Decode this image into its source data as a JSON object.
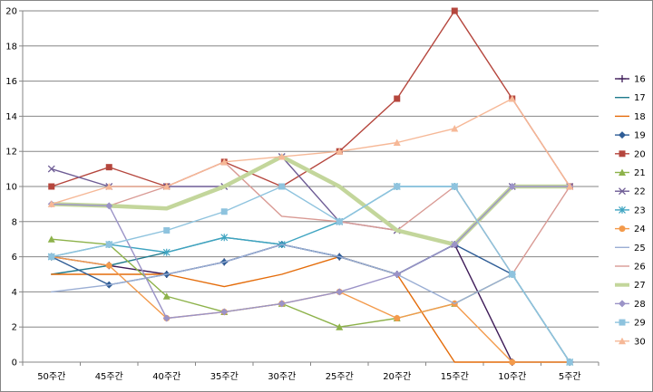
{
  "chart_data": {
    "type": "line",
    "categories": [
      "50주간",
      "45주간",
      "40주간",
      "35주간",
      "30주간",
      "25주간",
      "20주간",
      "15주간",
      "10주간",
      "5주간"
    ],
    "ylim": [
      0,
      20
    ],
    "yticks": [
      0,
      2,
      4,
      6,
      8,
      10,
      12,
      14,
      16,
      18,
      20
    ],
    "grid": true,
    "legend_position": "right",
    "series": [
      {
        "name": "16",
        "color": "#3d1a57",
        "marker": "plus",
        "values": [
          6,
          5.5,
          5,
          5.7,
          6.7,
          6,
          5,
          6.7,
          0,
          0
        ]
      },
      {
        "name": "17",
        "color": "#1f7a8c",
        "marker": "none",
        "values": [
          5,
          5.5,
          6.25,
          7.1,
          6.7,
          6,
          5,
          6.7,
          10,
          10
        ]
      },
      {
        "name": "18",
        "color": "#e46c0a",
        "marker": "none",
        "values": [
          5,
          5,
          5,
          4.3,
          5,
          6,
          5,
          0,
          0,
          0
        ]
      },
      {
        "name": "19",
        "color": "#2f5d96",
        "marker": "diamond",
        "values": [
          6,
          4.4,
          5,
          5.7,
          6.7,
          6,
          5,
          6.7,
          5,
          0
        ]
      },
      {
        "name": "20",
        "color": "#b5463d",
        "marker": "square",
        "values": [
          10,
          11.1,
          10,
          11.4,
          10,
          12,
          15,
          20,
          15,
          10
        ]
      },
      {
        "name": "21",
        "color": "#8db24a",
        "marker": "triangle",
        "values": [
          7,
          6.7,
          3.75,
          2.86,
          3.33,
          2,
          2.5,
          3.33,
          5,
          0
        ]
      },
      {
        "name": "22",
        "color": "#6e5c95",
        "marker": "x",
        "values": [
          11,
          10,
          10,
          10,
          11.7,
          8,
          7.5,
          6.7,
          10,
          10
        ]
      },
      {
        "name": "23",
        "color": "#3ea4c1",
        "marker": "star",
        "values": [
          6,
          6.7,
          6.25,
          7.1,
          6.7,
          8,
          10,
          10,
          5,
          0
        ]
      },
      {
        "name": "24",
        "color": "#f39a4b",
        "marker": "circle",
        "values": [
          6,
          5.5,
          2.5,
          2.86,
          3.33,
          4,
          2.5,
          3.33,
          0,
          0
        ]
      },
      {
        "name": "25",
        "color": "#9aaed4",
        "marker": "none",
        "values": [
          4,
          4.4,
          5,
          5.7,
          6.7,
          6,
          5,
          3.33,
          5,
          0
        ]
      },
      {
        "name": "26",
        "color": "#d99a94",
        "marker": "none",
        "values": [
          9,
          8.9,
          10,
          11.4,
          8.3,
          8,
          7.5,
          10,
          5,
          10
        ]
      },
      {
        "name": "27",
        "color": "#c3d69b",
        "marker": "none",
        "thick": true,
        "values": [
          9,
          8.9,
          8.75,
          10,
          11.7,
          10,
          7.5,
          6.7,
          10,
          10
        ]
      },
      {
        "name": "28",
        "color": "#9b93c7",
        "marker": "diamond",
        "values": [
          9,
          8.9,
          2.5,
          2.86,
          3.33,
          4,
          5,
          6.7,
          10,
          10
        ]
      },
      {
        "name": "29",
        "color": "#8ec3de",
        "marker": "square",
        "values": [
          6,
          6.7,
          7.5,
          8.57,
          10,
          8,
          10,
          10,
          5,
          0
        ]
      },
      {
        "name": "30",
        "color": "#f6b897",
        "marker": "triangle",
        "values": [
          9,
          10,
          10,
          11.4,
          11.7,
          12,
          12.5,
          13.3,
          15,
          10
        ]
      }
    ]
  }
}
